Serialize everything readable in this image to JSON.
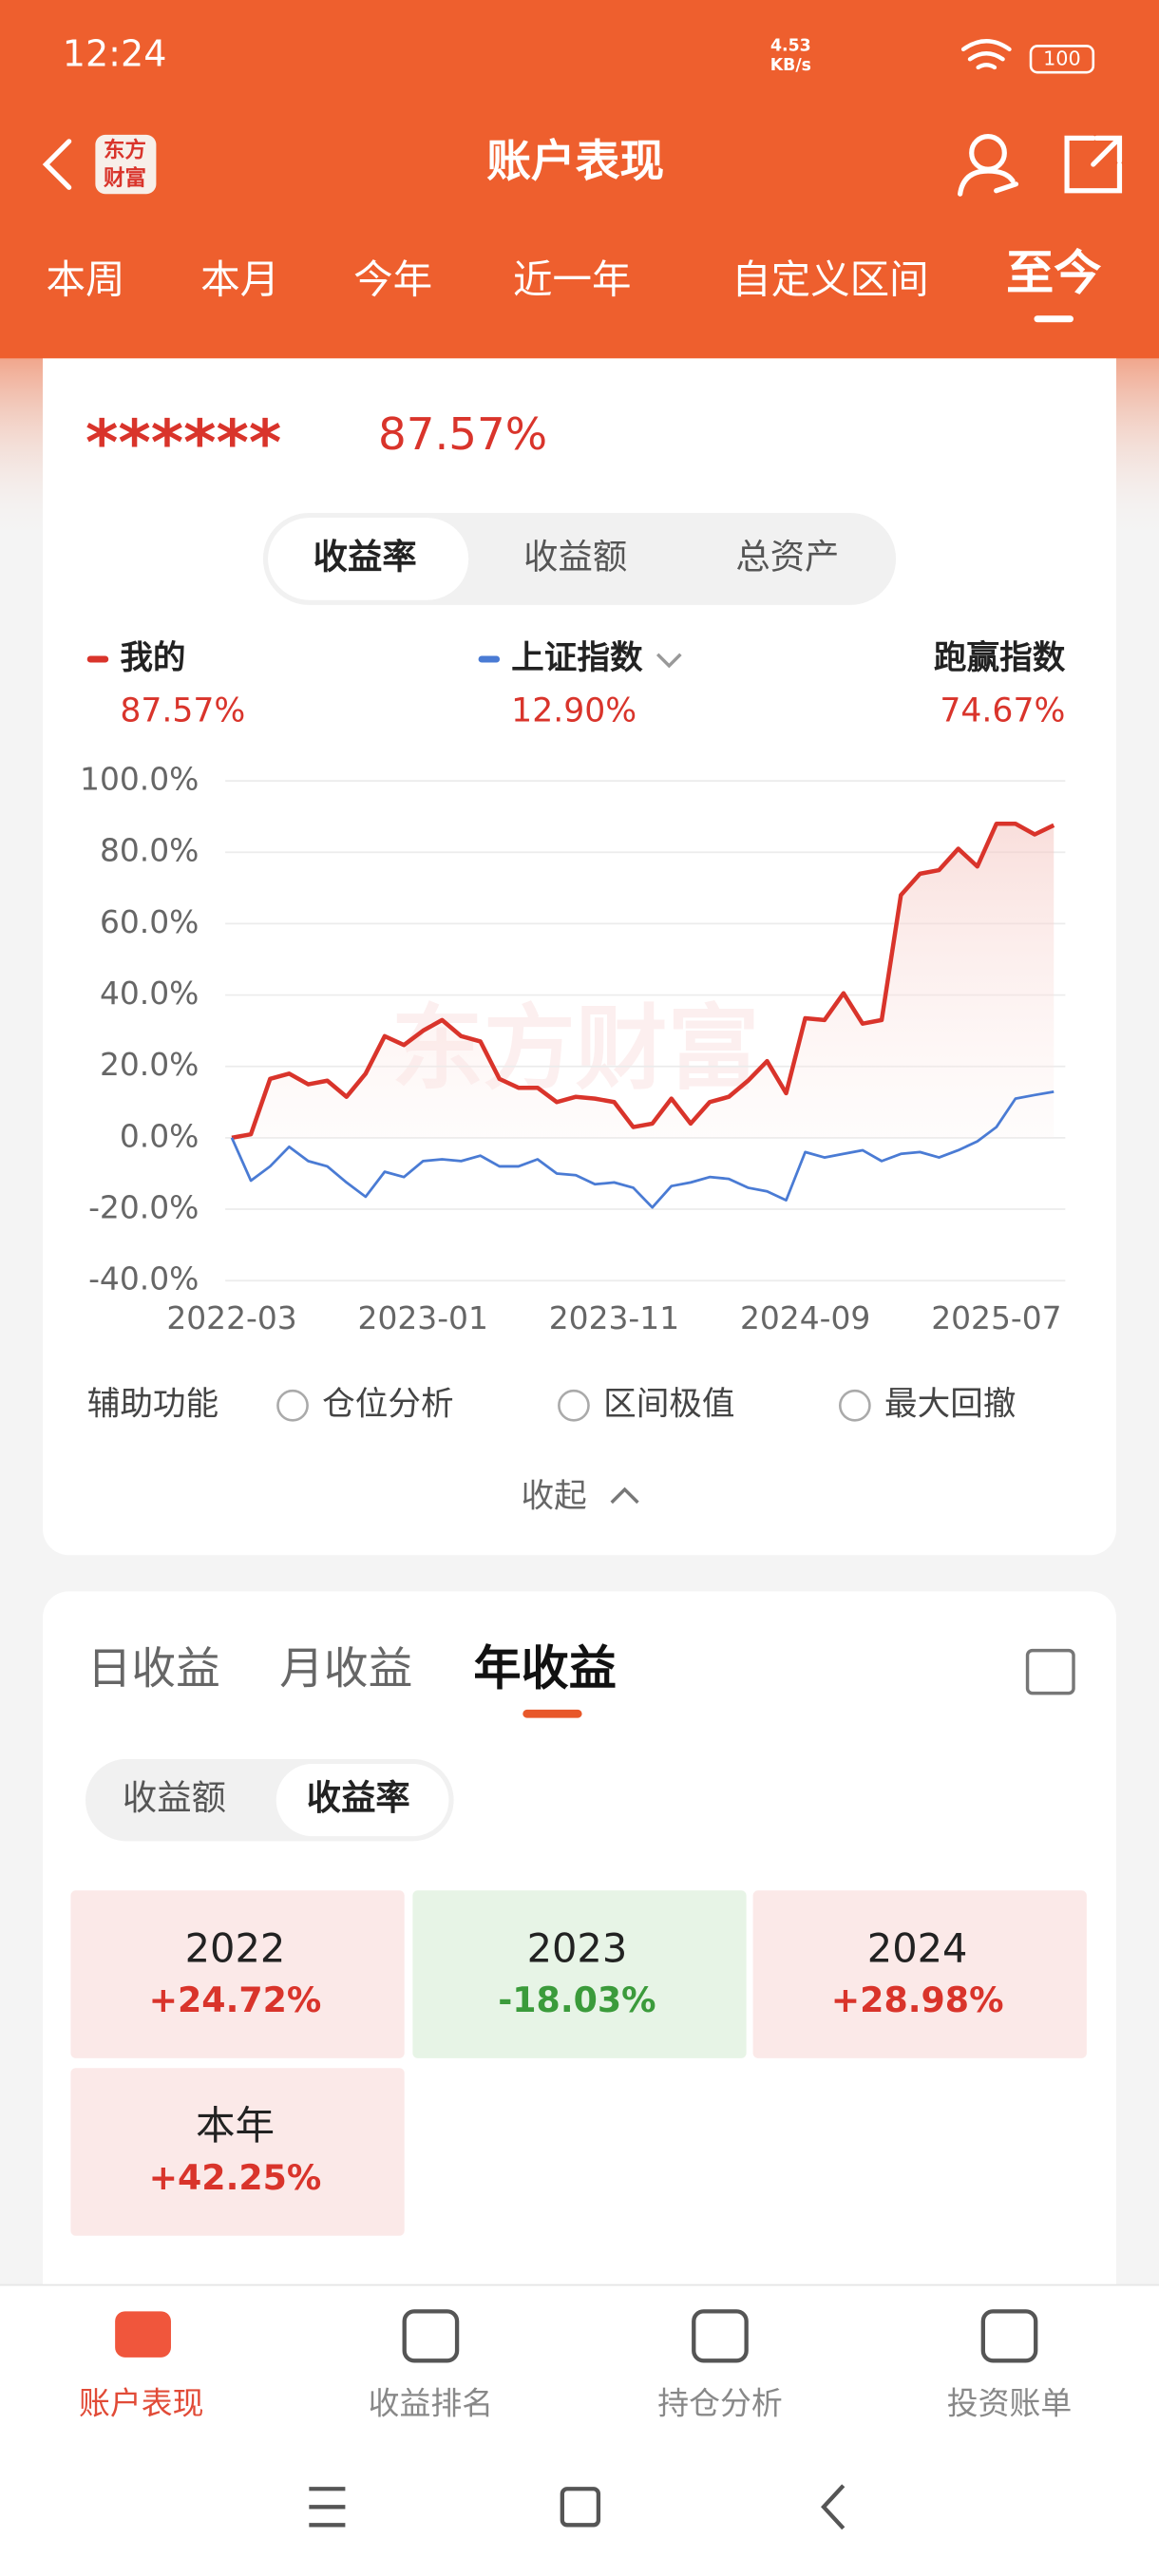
{
  "status_bar": {
    "time": "12:24",
    "speed": "4.53",
    "speed_unit": "KB/s",
    "battery": "100"
  },
  "header": {
    "logo": [
      "东方",
      "财富"
    ],
    "title": "账户表现"
  },
  "period_tabs": {
    "items": [
      "本周",
      "本月",
      "今年",
      "近一年",
      "自定义区间",
      "至今"
    ],
    "active": 5
  },
  "summary": {
    "masked": "******",
    "rate": "87.57%"
  },
  "metric_tabs": {
    "items": [
      "收益率",
      "收益额",
      "总资产"
    ],
    "active": 0
  },
  "legend": [
    {
      "name": "我的",
      "value": "87.57%",
      "color": "#d9342b"
    },
    {
      "name": "上证指数",
      "value": "12.90%",
      "color": "#4a7bd4"
    },
    {
      "name": "跑赢指数",
      "value": "74.67%"
    }
  ],
  "chart_data": {
    "type": "line",
    "watermark": "东方财富",
    "categories": [
      "2022-03",
      "2022-04",
      "2022-05",
      "2022-06",
      "2022-07",
      "2022-08",
      "2022-09",
      "2022-10",
      "2022-11",
      "2022-12",
      "2023-01",
      "2023-02",
      "2023-03",
      "2023-04",
      "2023-05",
      "2023-06",
      "2023-07",
      "2023-08",
      "2023-09",
      "2023-10",
      "2023-11",
      "2023-12",
      "2024-01",
      "2024-02",
      "2024-03",
      "2024-04",
      "2024-05",
      "2024-06",
      "2024-07",
      "2024-08",
      "2024-09",
      "2024-10",
      "2024-11",
      "2024-12",
      "2025-01",
      "2025-02",
      "2025-03",
      "2025-04",
      "2025-05",
      "2025-06",
      "2025-07",
      "2025-08",
      "2025-09",
      "2025-10"
    ],
    "series": [
      {
        "name": "我的",
        "color": "#d9342b",
        "values": [
          0,
          1,
          16.5,
          18,
          15,
          16,
          11.5,
          18,
          28.5,
          26,
          30,
          33,
          28.5,
          27,
          16.5,
          14,
          14,
          10,
          11.5,
          11,
          10,
          3,
          4,
          11,
          4,
          10,
          11.5,
          16,
          21.5,
          12.5,
          33.5,
          33,
          40.5,
          32,
          33,
          68,
          74,
          75,
          81,
          76,
          88,
          88,
          85,
          87.57
        ]
      },
      {
        "name": "上证指数",
        "color": "#4a7bd4",
        "values": [
          0,
          -12,
          -8,
          -2.5,
          -6.5,
          -8,
          -12.5,
          -16.5,
          -9.5,
          -11,
          -6.5,
          -6,
          -6.5,
          -5,
          -8,
          -8,
          -6,
          -10,
          -10.5,
          -13,
          -12.5,
          -14,
          -19.5,
          -13.5,
          -12.5,
          -11,
          -11.5,
          -14,
          -15,
          -17.5,
          -4,
          -5.5,
          -4.5,
          -3.5,
          -6.5,
          -4.5,
          -4,
          -5.5,
          -3.5,
          -1,
          3,
          11,
          12,
          12.9
        ]
      }
    ],
    "ylim": [
      -40,
      100
    ],
    "yticks": [
      {
        "value": 100,
        "label": "100.0%"
      },
      {
        "value": 80,
        "label": "80.0%"
      },
      {
        "value": 60,
        "label": "60.0%"
      },
      {
        "value": 40,
        "label": "40.0%"
      },
      {
        "value": 20,
        "label": "20.0%"
      },
      {
        "value": 0,
        "label": "0.0%"
      },
      {
        "value": -20,
        "label": "-20.0%"
      },
      {
        "value": -40,
        "label": "-40.0%"
      }
    ],
    "xticks": [
      "2022-03",
      "2023-01",
      "2023-11",
      "2024-09",
      "2025-07"
    ],
    "grid": true,
    "area": true
  },
  "tools": {
    "label": "辅助功能",
    "options": [
      "仓位分析",
      "区间极值",
      "最大回撤"
    ]
  },
  "collapse": "收起",
  "returns": {
    "tabs": [
      "日收益",
      "月收益",
      "年收益"
    ],
    "active_tab": 2,
    "modes": [
      "收益额",
      "收益率"
    ],
    "active_mode": 1,
    "cells": [
      {
        "label": "2022",
        "value": "+24.72%"
      },
      {
        "label": "2023",
        "value": "-18.03%"
      },
      {
        "label": "2024",
        "value": "+28.98%"
      },
      {
        "label": "本年",
        "value": "+42.25%"
      }
    ]
  },
  "bottom_nav": {
    "items": [
      "账户表现",
      "收益排名",
      "持仓分析",
      "投资账单"
    ],
    "active": 0
  }
}
